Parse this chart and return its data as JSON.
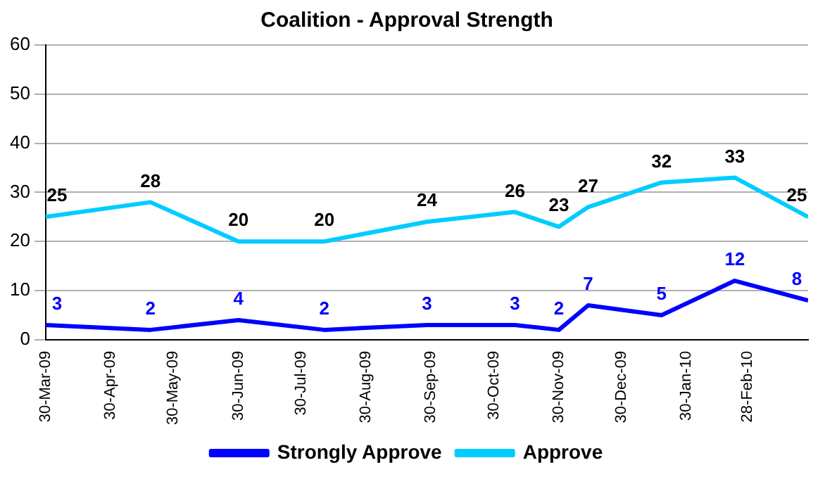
{
  "chart_data": {
    "type": "line",
    "title": "Coalition - Approval Strength",
    "x": [
      "2009-03-30",
      "2009-05-19",
      "2009-06-30",
      "2009-08-10",
      "2009-09-28",
      "2009-11-09",
      "2009-11-30",
      "2009-12-14",
      "2010-01-18",
      "2010-02-22",
      "2010-03-29"
    ],
    "series": [
      {
        "name": "Strongly Approve",
        "color": "#0000ff",
        "values": [
          3,
          2,
          4,
          2,
          3,
          3,
          2,
          7,
          5,
          12,
          8
        ]
      },
      {
        "name": "Approve",
        "color": "#00ccff",
        "values": [
          25,
          28,
          20,
          20,
          24,
          26,
          23,
          27,
          32,
          33,
          25
        ]
      }
    ],
    "xlim": [
      "2009-03-30",
      "2010-03-29"
    ],
    "xticks": [
      {
        "value": "2009-03-30",
        "label": "30-Mar-09"
      },
      {
        "value": "2009-04-30",
        "label": "30-Apr-09"
      },
      {
        "value": "2009-05-30",
        "label": "30-May-09"
      },
      {
        "value": "2009-06-30",
        "label": "30-Jun-09"
      },
      {
        "value": "2009-07-30",
        "label": "30-Jul-09"
      },
      {
        "value": "2009-08-30",
        "label": "30-Aug-09"
      },
      {
        "value": "2009-09-30",
        "label": "30-Sep-09"
      },
      {
        "value": "2009-10-30",
        "label": "30-Oct-09"
      },
      {
        "value": "2009-11-30",
        "label": "30-Nov-09"
      },
      {
        "value": "2009-12-30",
        "label": "30-Dec-09"
      },
      {
        "value": "2010-01-30",
        "label": "30-Jan-10"
      },
      {
        "value": "2010-02-28",
        "label": "28-Feb-10"
      }
    ],
    "ylim": [
      0,
      60
    ],
    "yticks": [
      0,
      10,
      20,
      30,
      40,
      50,
      60
    ],
    "grid": "y",
    "legend": "bottom",
    "data_labels": true,
    "marker": "none",
    "line_style": "solid"
  }
}
